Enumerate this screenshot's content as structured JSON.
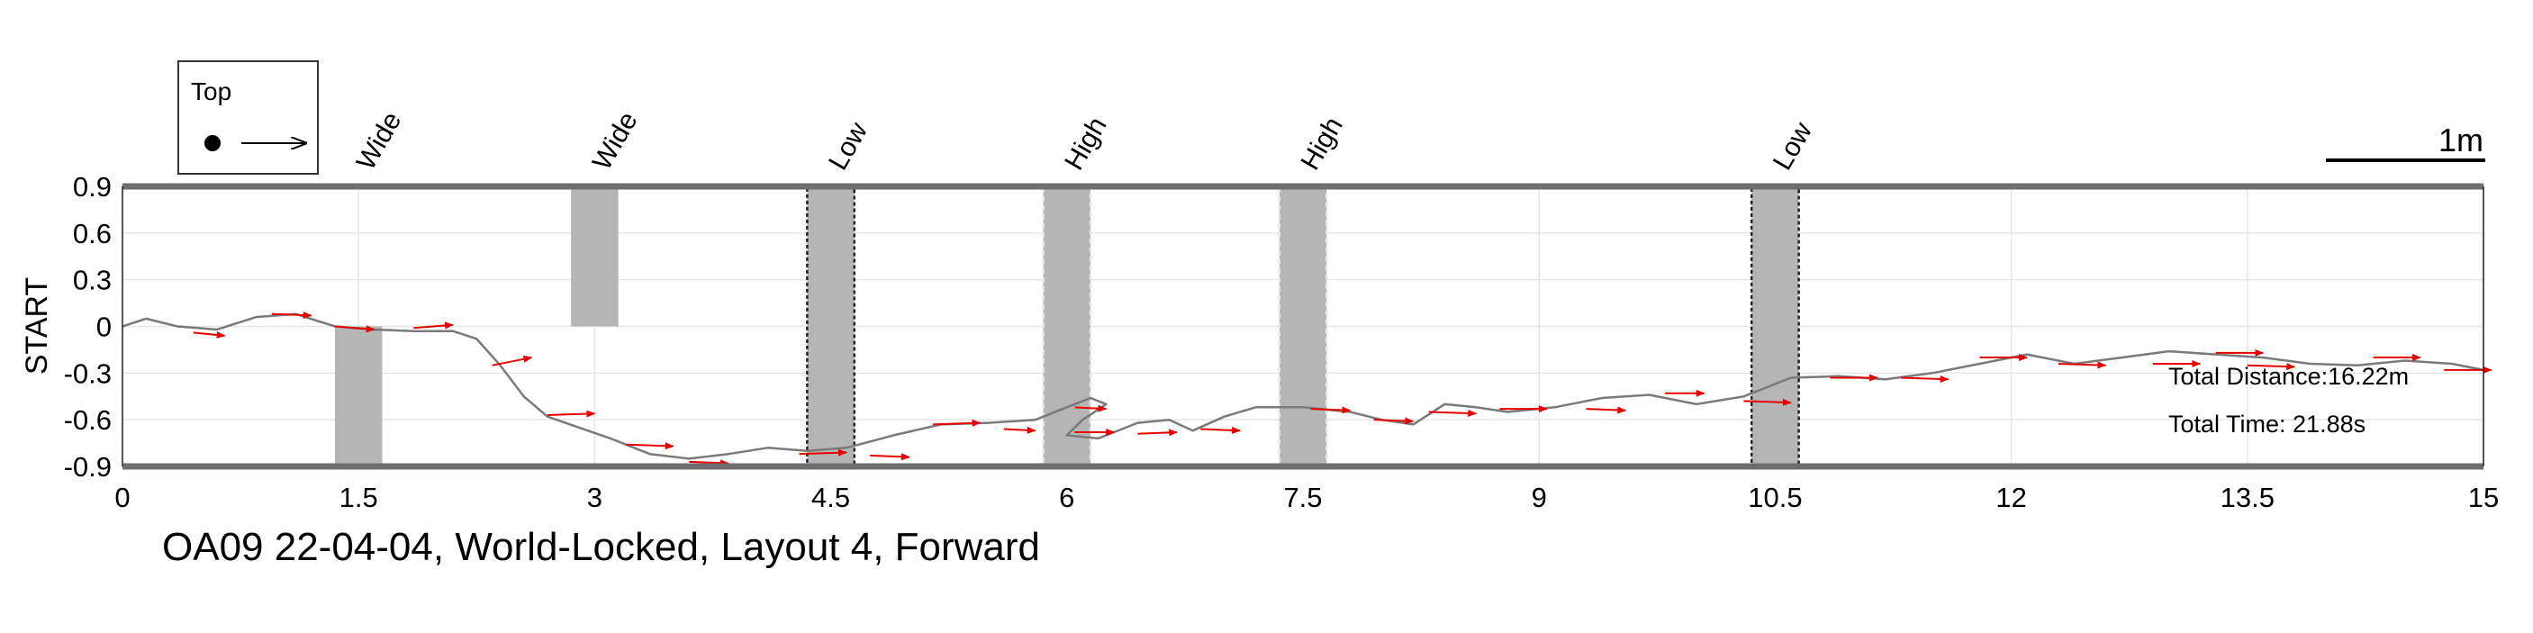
{
  "chart_data": {
    "type": "line",
    "title": "OA09 22-04-04, World-Locked, Layout 4, Forward",
    "ylabel": "START",
    "xlabel": "",
    "xlim": [
      0,
      15
    ],
    "ylim": [
      -0.9,
      0.9
    ],
    "xticks": [
      "0",
      "1.5",
      "3",
      "4.5",
      "6",
      "7.5",
      "9",
      "10.5",
      "12",
      "13.5",
      "15"
    ],
    "yticks": [
      "0.9",
      "0.6",
      "0.3",
      "0",
      "-0.3",
      "-0.6",
      "-0.9"
    ],
    "grid": true,
    "legend": {
      "placement": "top-left",
      "label": "Top"
    },
    "scale_bar": {
      "label": "1m",
      "length_m": 1
    },
    "annotations": {
      "total_distance": "Total Distance:16.22m",
      "total_time": "Total Time: 21.88s"
    },
    "obstacles": [
      {
        "label": "Wide",
        "x_start": 1.35,
        "x_end": 1.65,
        "y_start": -0.9,
        "y_end": 0.0,
        "style": "plain"
      },
      {
        "label": "Wide",
        "x_start": 2.85,
        "x_end": 3.15,
        "y_start": 0.0,
        "y_end": 0.9,
        "style": "plain"
      },
      {
        "label": "Low",
        "x_start": 4.35,
        "x_end": 4.65,
        "y_start": -0.9,
        "y_end": 0.9,
        "style": "low"
      },
      {
        "label": "High",
        "x_start": 5.85,
        "x_end": 6.15,
        "y_start": -0.9,
        "y_end": 0.9,
        "style": "high"
      },
      {
        "label": "High",
        "x_start": 7.35,
        "x_end": 7.65,
        "y_start": -0.9,
        "y_end": 0.9,
        "style": "high"
      },
      {
        "label": "Low",
        "x_start": 10.35,
        "x_end": 10.65,
        "y_start": -0.9,
        "y_end": 0.9,
        "style": "low"
      }
    ],
    "series": [
      {
        "x": [
          0.0,
          0.15,
          0.35,
          0.6,
          0.85,
          1.1,
          1.35,
          1.6,
          1.85,
          2.1,
          2.25,
          2.4,
          2.55,
          2.7,
          2.9,
          3.1,
          3.35,
          3.6,
          3.85,
          4.1,
          4.35,
          4.6,
          4.9,
          5.2,
          5.5,
          5.8,
          6.0,
          6.15,
          6.25,
          6.1,
          6.0,
          6.2,
          6.45,
          6.65,
          6.8,
          7.0,
          7.2,
          7.5,
          7.8,
          8.0,
          8.2,
          8.4,
          8.6,
          8.8,
          9.1,
          9.4,
          9.7,
          10.0,
          10.3,
          10.6,
          10.9,
          11.2,
          11.5,
          11.8,
          12.1,
          12.4,
          12.7,
          13.0,
          13.3,
          13.6,
          13.9,
          14.2,
          14.5,
          14.8,
          15.0
        ],
        "y": [
          0.0,
          0.05,
          0.0,
          -0.02,
          0.06,
          0.08,
          0.0,
          -0.02,
          -0.03,
          -0.03,
          -0.08,
          -0.25,
          -0.45,
          -0.58,
          -0.65,
          -0.72,
          -0.82,
          -0.85,
          -0.82,
          -0.78,
          -0.8,
          -0.78,
          -0.7,
          -0.63,
          -0.62,
          -0.6,
          -0.52,
          -0.46,
          -0.5,
          -0.6,
          -0.7,
          -0.72,
          -0.62,
          -0.6,
          -0.67,
          -0.58,
          -0.52,
          -0.52,
          -0.55,
          -0.6,
          -0.63,
          -0.5,
          -0.52,
          -0.55,
          -0.52,
          -0.46,
          -0.44,
          -0.5,
          -0.45,
          -0.33,
          -0.32,
          -0.34,
          -0.3,
          -0.24,
          -0.18,
          -0.24,
          -0.2,
          -0.16,
          -0.18,
          -0.2,
          -0.24,
          -0.25,
          -0.22,
          -0.24,
          -0.28
        ]
      }
    ],
    "heading_arrows": [
      [
        0.45,
        -0.04,
        0.2,
        -0.02
      ],
      [
        0.95,
        0.08,
        0.25,
        -0.01
      ],
      [
        1.35,
        0.0,
        0.25,
        -0.02
      ],
      [
        1.85,
        -0.01,
        0.25,
        0.02
      ],
      [
        2.35,
        -0.25,
        0.25,
        0.05
      ],
      [
        2.7,
        -0.57,
        0.3,
        0.01
      ],
      [
        3.2,
        -0.76,
        0.3,
        -0.01
      ],
      [
        3.6,
        -0.87,
        0.25,
        -0.01
      ],
      [
        4.3,
        -0.82,
        0.3,
        0.01
      ],
      [
        4.75,
        -0.83,
        0.25,
        -0.01
      ],
      [
        5.15,
        -0.63,
        0.3,
        0.01
      ],
      [
        5.6,
        -0.66,
        0.2,
        -0.01
      ],
      [
        6.05,
        -0.52,
        0.2,
        -0.01
      ],
      [
        6.05,
        -0.68,
        0.25,
        0.0
      ],
      [
        6.45,
        -0.69,
        0.25,
        0.01
      ],
      [
        6.85,
        -0.66,
        0.25,
        -0.01
      ],
      [
        7.55,
        -0.53,
        0.25,
        -0.01
      ],
      [
        7.95,
        -0.6,
        0.25,
        -0.01
      ],
      [
        8.3,
        -0.55,
        0.3,
        -0.01
      ],
      [
        8.75,
        -0.53,
        0.3,
        0.0
      ],
      [
        9.3,
        -0.53,
        0.25,
        -0.01
      ],
      [
        9.8,
        -0.43,
        0.25,
        0.0
      ],
      [
        10.3,
        -0.48,
        0.3,
        -0.01
      ],
      [
        10.85,
        -0.33,
        0.3,
        0.0
      ],
      [
        11.3,
        -0.33,
        0.3,
        -0.01
      ],
      [
        11.8,
        -0.2,
        0.3,
        0.0
      ],
      [
        12.3,
        -0.24,
        0.3,
        -0.01
      ],
      [
        12.9,
        -0.24,
        0.3,
        0.0
      ],
      [
        13.3,
        -0.17,
        0.3,
        0.0
      ],
      [
        13.5,
        -0.25,
        0.3,
        -0.01
      ],
      [
        14.3,
        -0.2,
        0.3,
        0.0
      ],
      [
        14.75,
        -0.28,
        0.3,
        0.0
      ]
    ],
    "colors": {
      "path": "#7a7a7a",
      "arrows": "#e60000",
      "obstacle": "#b5b5b5",
      "frame": "#6e6e6e",
      "grid": "#e6e6e6"
    }
  }
}
